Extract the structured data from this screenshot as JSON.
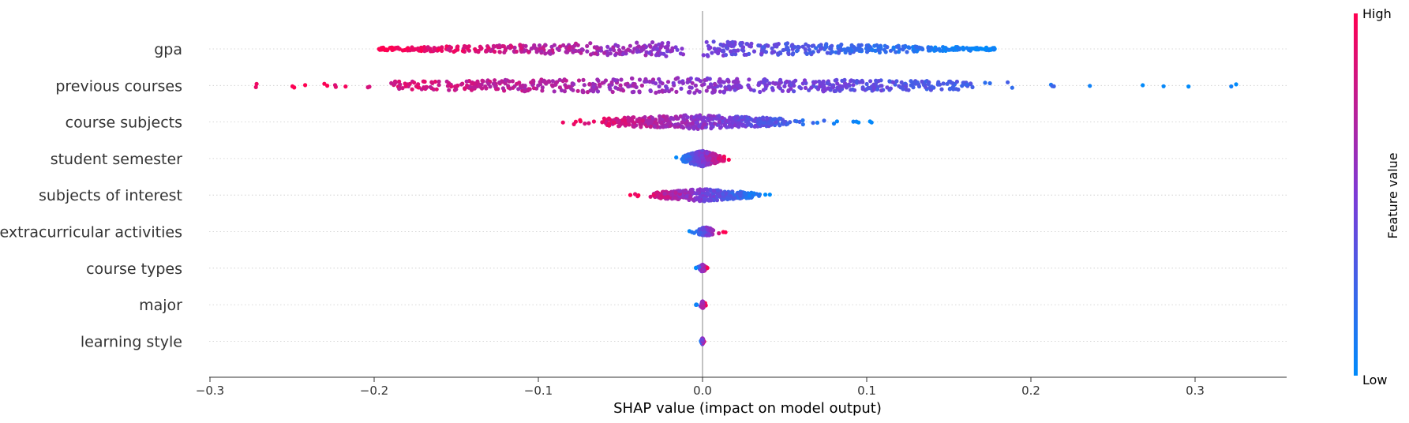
{
  "chart_data": {
    "type": "scatter",
    "subtype": "shap-beeswarm",
    "xlabel": "SHAP value (impact on model output)",
    "xlim": [
      -0.3,
      0.355
    ],
    "x_ticks": [
      -0.3,
      -0.2,
      -0.1,
      0.0,
      0.1,
      0.2,
      0.3
    ],
    "x_tick_labels": [
      "−0.3",
      "−0.2",
      "−0.1",
      "0.0",
      "0.1",
      "0.2",
      "0.3"
    ],
    "grid": "horizontal dotted per feature",
    "colorbar": {
      "label": "Feature value",
      "high": "High",
      "low": "Low",
      "low_color": "#008bfb",
      "high_color": "#ff0051",
      "mid_color": "#7d3ad6"
    },
    "features": [
      {
        "name": "gpa",
        "xmin": -0.197,
        "xmax": 0.178,
        "core_min": -0.197,
        "core_max": 0.178,
        "spread": 1.0,
        "count": 650,
        "high_on_left": true,
        "gap": [
          -0.01,
          0.0
        ]
      },
      {
        "name": "previous courses",
        "xmin": -0.272,
        "xmax": 0.325,
        "core_min": -0.19,
        "core_max": 0.165,
        "spread": 1.0,
        "count": 620,
        "high_on_left": true
      },
      {
        "name": "course subjects",
        "xmin": -0.085,
        "xmax": 0.103,
        "core_min": -0.06,
        "core_max": 0.05,
        "spread": 0.9,
        "count": 460,
        "high_on_left": true
      },
      {
        "name": "student semester",
        "xmin": -0.016,
        "xmax": 0.016,
        "core_min": -0.016,
        "core_max": 0.016,
        "spread": 1.0,
        "count": 520,
        "high_on_left": false
      },
      {
        "name": "subjects of interest",
        "xmin": -0.044,
        "xmax": 0.041,
        "core_min": -0.03,
        "core_max": 0.03,
        "spread": 0.8,
        "count": 380,
        "high_on_left": true
      },
      {
        "name": "extracurricular activities",
        "xmin": -0.008,
        "xmax": 0.014,
        "core_min": -0.004,
        "core_max": 0.008,
        "spread": 0.55,
        "count": 160,
        "high_on_left": false
      },
      {
        "name": "course types",
        "xmin": -0.004,
        "xmax": 0.003,
        "core_min": -0.002,
        "core_max": 0.002,
        "spread": 0.45,
        "count": 110,
        "high_on_left": false
      },
      {
        "name": "major",
        "xmin": -0.004,
        "xmax": 0.002,
        "core_min": -0.001,
        "core_max": 0.001,
        "spread": 0.45,
        "count": 90,
        "high_on_left": false
      },
      {
        "name": "learning style",
        "xmin": -0.001,
        "xmax": 0.001,
        "core_min": -0.001,
        "core_max": 0.001,
        "spread": 0.4,
        "count": 80,
        "high_on_left": false
      }
    ]
  }
}
